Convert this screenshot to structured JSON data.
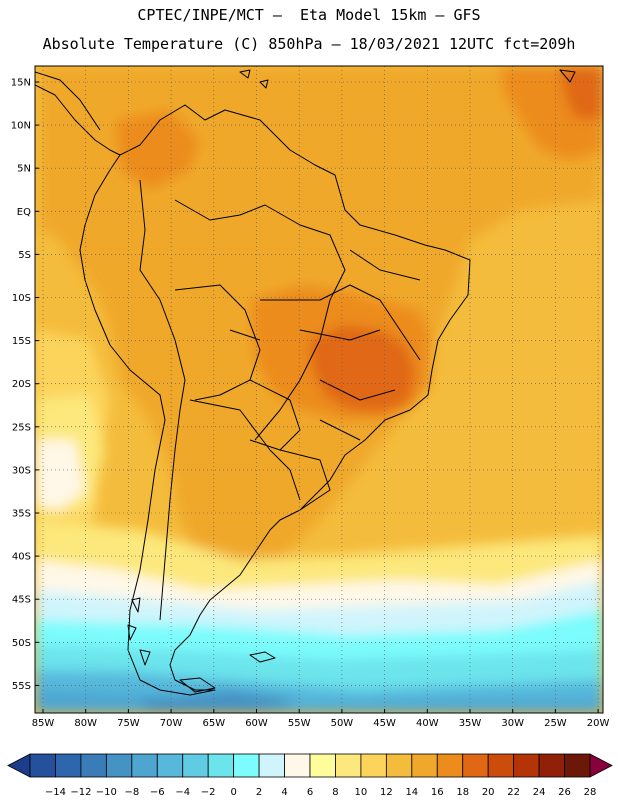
{
  "header": {
    "line1": "CPTEC/INPE/MCT –  Eta Model 15km – GFS",
    "line2": "Absolute Temperature (C) 850hPa – 18/03/2021 12UTC fct=209h"
  },
  "map": {
    "region": "South America",
    "lat_ticks": [
      "15N",
      "10N",
      "5N",
      "EQ",
      "5S",
      "10S",
      "15S",
      "20S",
      "25S",
      "30S",
      "35S",
      "40S",
      "45S",
      "50S",
      "55S"
    ],
    "lon_ticks": [
      "85W",
      "80W",
      "75W",
      "70W",
      "65W",
      "60W",
      "55W",
      "50W",
      "45W",
      "40W",
      "35W",
      "30W",
      "25W",
      "20W"
    ],
    "lat_range": [
      -58,
      16
    ],
    "lon_range": [
      -86,
      -20
    ]
  },
  "legend": {
    "labels": [
      "-14",
      "-12",
      "-10",
      "-8",
      "-6",
      "-4",
      "-2",
      "0",
      "2",
      "4",
      "6",
      "8",
      "10",
      "12",
      "14",
      "16",
      "18",
      "20",
      "22",
      "24",
      "26",
      "28"
    ],
    "colors": [
      "#1c3c8c",
      "#24509c",
      "#2d66ac",
      "#3a7cb8",
      "#4592c4",
      "#4ea6d0",
      "#57b8dc",
      "#60cce4",
      "#6ce4ec",
      "#7cfcfc",
      "#d0f4fc",
      "#fff8e8",
      "#fffc9c",
      "#fce87c",
      "#fcd45c",
      "#f4bc3c",
      "#f0a82c",
      "#ec8c1c",
      "#e06814",
      "#cc4c0c",
      "#b43408",
      "#902008",
      "#6c1808",
      "#88003c"
    ]
  }
}
